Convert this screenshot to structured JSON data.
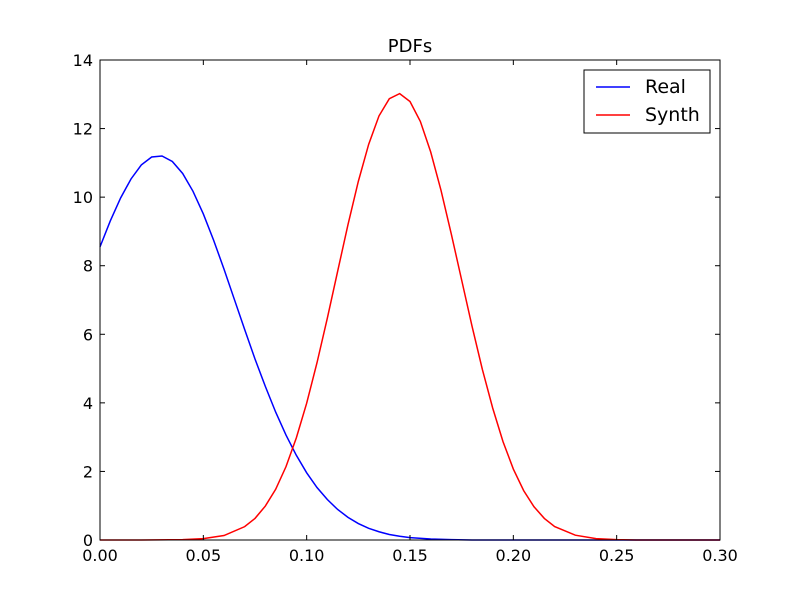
{
  "chart_data": {
    "type": "line",
    "title": "PDFs",
    "xlabel": "",
    "ylabel": "",
    "xlim": [
      0.0,
      0.3
    ],
    "ylim": [
      0,
      14
    ],
    "x_ticks": [
      0.0,
      0.05,
      0.1,
      0.15,
      0.2,
      0.25,
      0.3
    ],
    "x_tick_labels": [
      "0.00",
      "0.05",
      "0.10",
      "0.15",
      "0.20",
      "0.25",
      "0.30"
    ],
    "y_ticks": [
      0,
      2,
      4,
      6,
      8,
      10,
      12,
      14
    ],
    "y_tick_labels": [
      "0",
      "2",
      "4",
      "6",
      "8",
      "10",
      "12",
      "14"
    ],
    "grid": false,
    "legend": {
      "position": "top-right"
    },
    "series": [
      {
        "name": "Real",
        "color": "#0000ff",
        "x": [
          0.0,
          0.005,
          0.01,
          0.015,
          0.02,
          0.025,
          0.03,
          0.035,
          0.04,
          0.045,
          0.05,
          0.055,
          0.06,
          0.065,
          0.07,
          0.075,
          0.08,
          0.085,
          0.09,
          0.095,
          0.1,
          0.105,
          0.11,
          0.115,
          0.12,
          0.125,
          0.13,
          0.135,
          0.14,
          0.145,
          0.15,
          0.16,
          0.17,
          0.18,
          0.19,
          0.2,
          0.22,
          0.24,
          0.26,
          0.28,
          0.3
        ],
        "y": [
          8.55,
          9.31,
          9.98,
          10.53,
          10.94,
          11.17,
          11.2,
          11.04,
          10.69,
          10.17,
          9.51,
          8.74,
          7.9,
          7.02,
          6.14,
          5.28,
          4.48,
          3.73,
          3.06,
          2.47,
          1.96,
          1.53,
          1.18,
          0.89,
          0.66,
          0.48,
          0.34,
          0.24,
          0.16,
          0.11,
          0.07,
          0.03,
          0.01,
          0.0,
          0.0,
          0.0,
          0.0,
          0.0,
          0.0,
          0.0,
          0.0
        ]
      },
      {
        "name": "Synth",
        "color": "#ff0000",
        "x": [
          0.0,
          0.02,
          0.04,
          0.05,
          0.06,
          0.07,
          0.075,
          0.08,
          0.085,
          0.09,
          0.095,
          0.1,
          0.105,
          0.11,
          0.115,
          0.12,
          0.125,
          0.13,
          0.135,
          0.14,
          0.145,
          0.15,
          0.155,
          0.16,
          0.165,
          0.17,
          0.175,
          0.18,
          0.185,
          0.19,
          0.195,
          0.2,
          0.205,
          0.21,
          0.215,
          0.22,
          0.23,
          0.24,
          0.25,
          0.26,
          0.28,
          0.3
        ],
        "y": [
          0.0,
          0.0,
          0.01,
          0.04,
          0.13,
          0.39,
          0.63,
          0.99,
          1.48,
          2.14,
          2.98,
          3.99,
          5.17,
          6.47,
          7.84,
          9.2,
          10.46,
          11.54,
          12.37,
          12.87,
          13.02,
          12.79,
          12.21,
          11.32,
          10.2,
          8.92,
          7.58,
          6.24,
          4.98,
          3.85,
          2.87,
          2.07,
          1.44,
          0.97,
          0.63,
          0.39,
          0.14,
          0.04,
          0.01,
          0.0,
          0.0,
          0.0
        ]
      }
    ]
  }
}
